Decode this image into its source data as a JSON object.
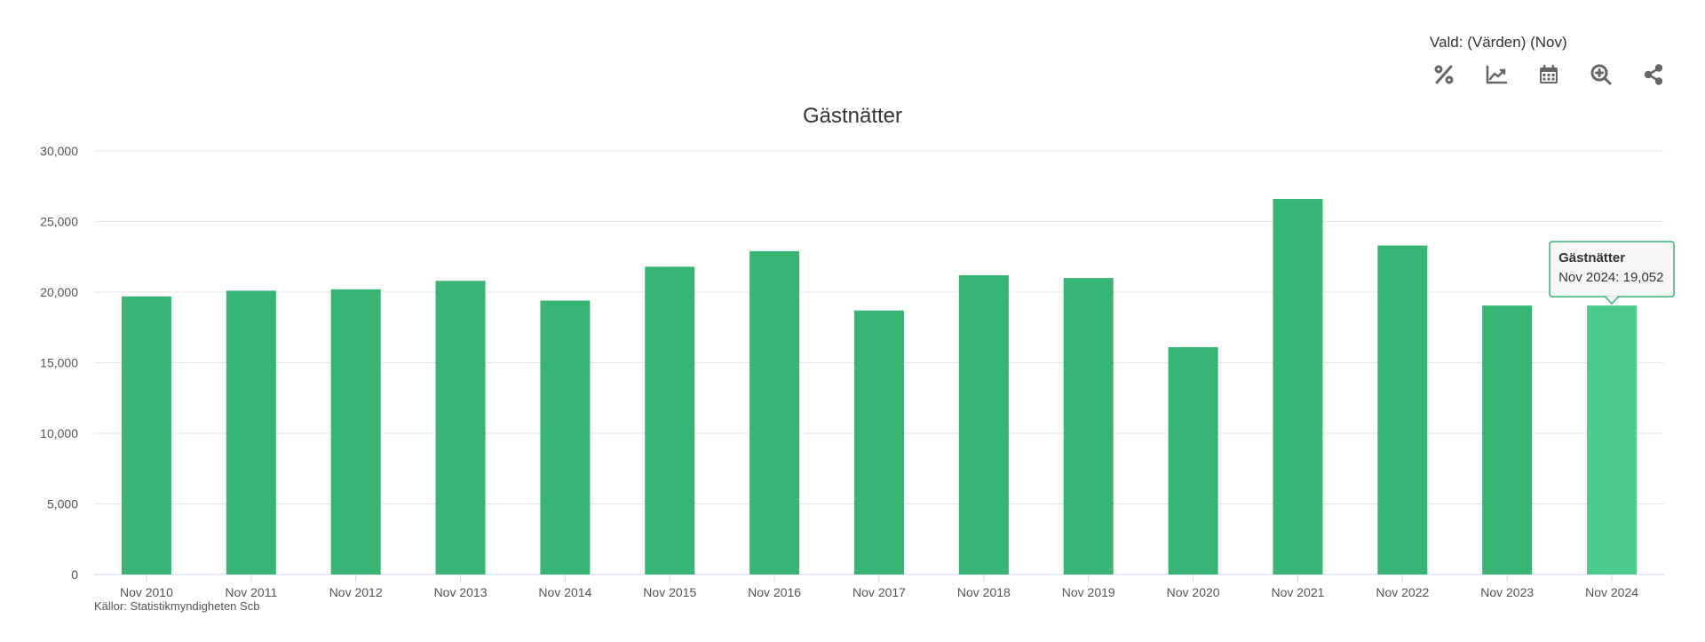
{
  "toolbar": {
    "selection_label": "Vald: (Värden) (Nov)",
    "icons": [
      "percent-icon",
      "trend-line-icon",
      "calendar-icon",
      "zoom-in-icon",
      "share-icon"
    ]
  },
  "chart_data": {
    "type": "bar",
    "title": "Gästnätter",
    "categories": [
      "Nov 2010",
      "Nov 2011",
      "Nov 2012",
      "Nov 2013",
      "Nov 2014",
      "Nov 2015",
      "Nov 2016",
      "Nov 2017",
      "Nov 2018",
      "Nov 2019",
      "Nov 2020",
      "Nov 2021",
      "Nov 2022",
      "Nov 2023",
      "Nov 2024"
    ],
    "series": [
      {
        "name": "Gästnätter",
        "values": [
          19700,
          20100,
          20200,
          20800,
          19400,
          21800,
          22900,
          18700,
          21200,
          21000,
          16100,
          26600,
          23300,
          19050,
          19052
        ]
      }
    ],
    "ylim": [
      0,
      30000
    ],
    "yticks": [
      "0",
      "5,000",
      "10,000",
      "15,000",
      "20,000",
      "25,000",
      "30,000"
    ],
    "ytick_values": [
      0,
      5000,
      10000,
      15000,
      20000,
      25000,
      30000
    ],
    "grid": true,
    "bar_color": "#36b574",
    "highlight_color": "#4ccc8a",
    "highlight_index": 14,
    "source": "Källor: Statistikmyndigheten Scb",
    "tooltip": {
      "title": "Gästnätter",
      "text": "Nov 2024: 19,052"
    }
  }
}
